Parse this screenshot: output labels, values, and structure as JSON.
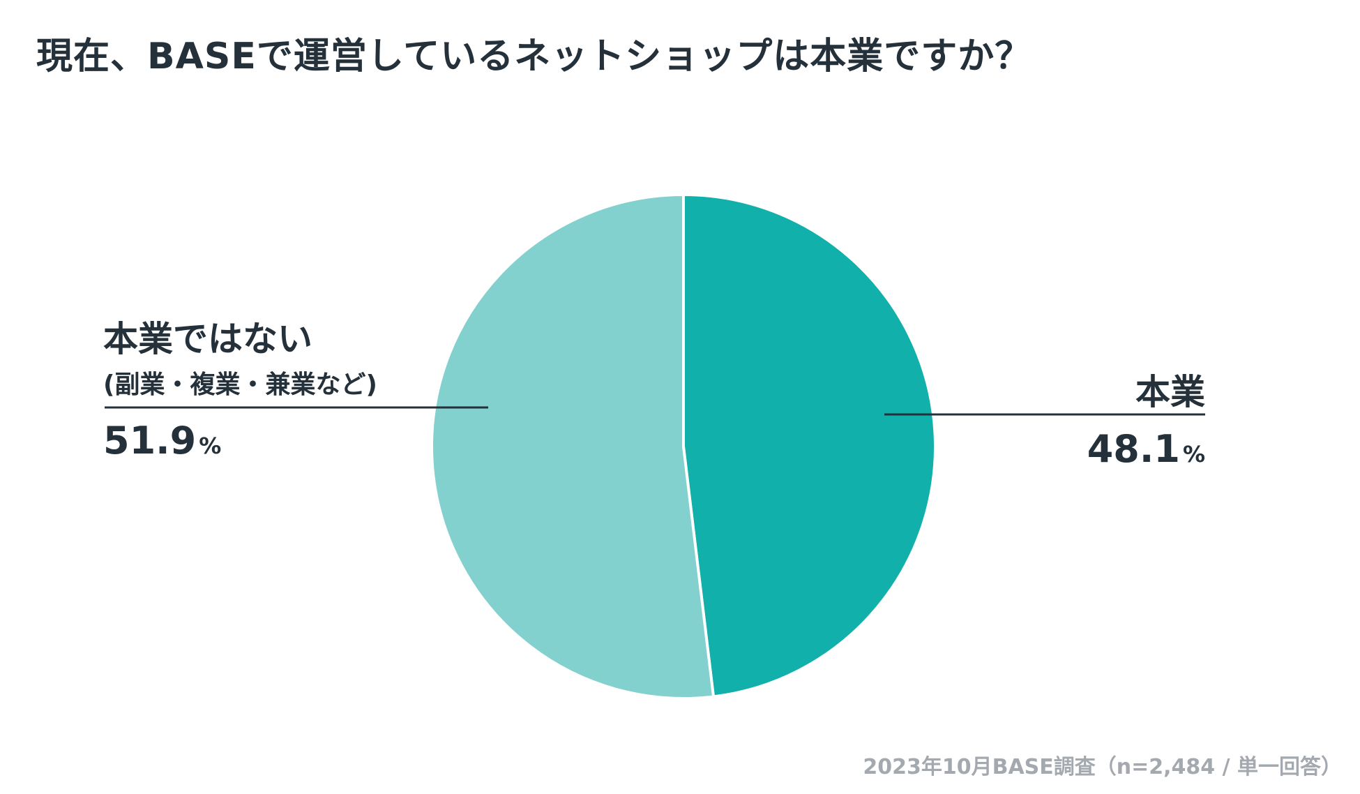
{
  "chart_data": {
    "type": "pie",
    "title": "現在、BASEで運営しているネットショップは本業ですか？",
    "slices": [
      {
        "name": "本業",
        "value": 48.1,
        "label": "48.1",
        "color": "#11b0aa"
      },
      {
        "name": "本業ではない",
        "sub": "(副業・複業・兼業など)",
        "value": 51.9,
        "label": "51.9",
        "color": "#83d1ce"
      }
    ],
    "unit": "%",
    "start_angle": "12 o'clock",
    "direction": "clockwise",
    "legend": "none"
  },
  "footnote": "2023年10月BASE調査（n=2,484 / 単一回答）"
}
